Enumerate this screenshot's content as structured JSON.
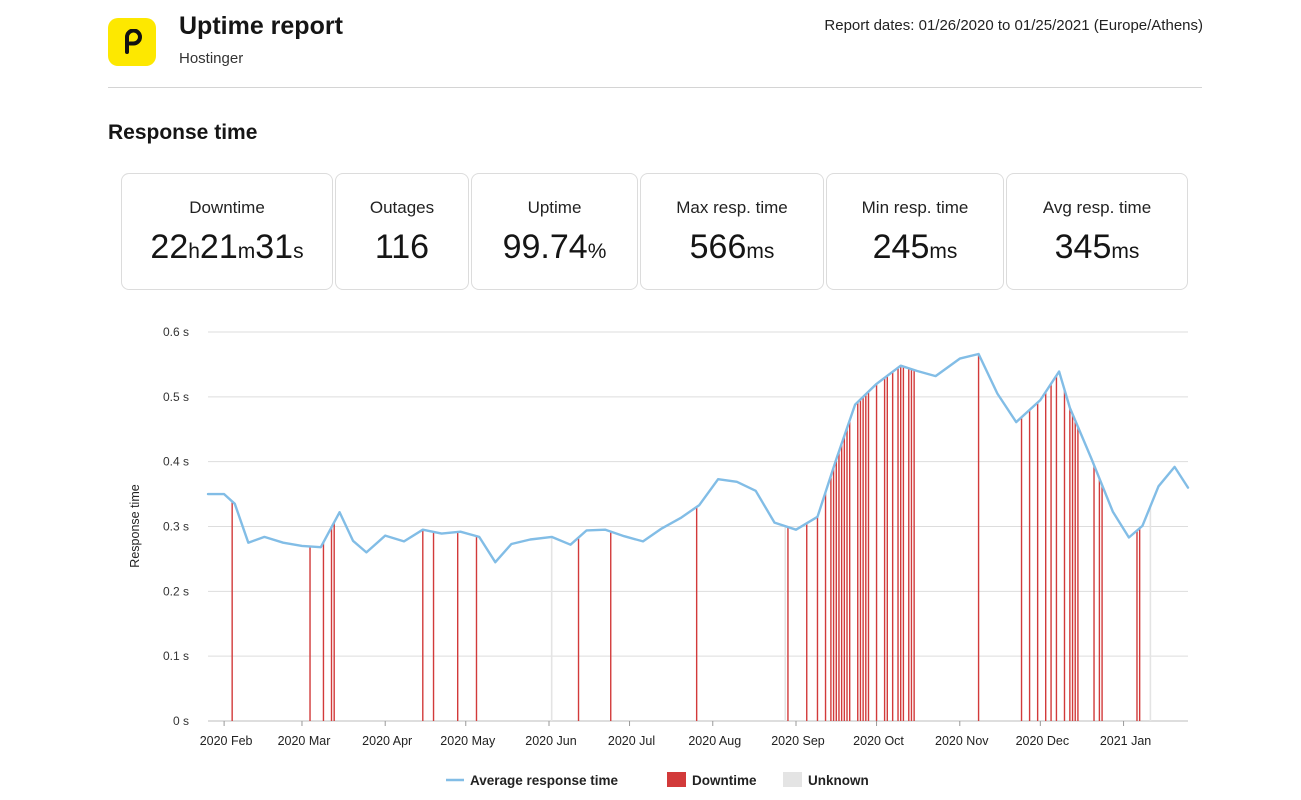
{
  "header": {
    "title": "Uptime report",
    "subtitle": "Hostinger",
    "report_dates": "Report dates: 01/26/2020 to 01/25/2021 (Europe/Athens)",
    "logo_color": "#fde800"
  },
  "section": {
    "title": "Response time"
  },
  "stats": [
    {
      "label": "Downtime",
      "parts": [
        [
          "22",
          "num"
        ],
        [
          "h",
          "unit"
        ],
        [
          "21",
          "num"
        ],
        [
          "m",
          "unit"
        ],
        [
          "31",
          "num"
        ],
        [
          "s",
          "unit"
        ]
      ]
    },
    {
      "label": "Outages",
      "parts": [
        [
          "116",
          "num"
        ]
      ]
    },
    {
      "label": "Uptime",
      "parts": [
        [
          "99.74",
          "num"
        ],
        [
          "%",
          "unit"
        ]
      ]
    },
    {
      "label": "Max resp. time",
      "parts": [
        [
          "566",
          "num"
        ],
        [
          "ms",
          "unit"
        ]
      ]
    },
    {
      "label": "Min resp. time",
      "parts": [
        [
          "245",
          "num"
        ],
        [
          "ms",
          "unit"
        ]
      ]
    },
    {
      "label": "Avg resp. time",
      "parts": [
        [
          "345",
          "num"
        ],
        [
          "ms",
          "unit"
        ]
      ]
    }
  ],
  "chart_data": {
    "type": "line",
    "ylabel": "Response time",
    "yticks": [
      "0 s",
      "0.1 s",
      "0.2 s",
      "0.3 s",
      "0.4 s",
      "0.5 s",
      "0.6 s"
    ],
    "ylim": [
      0,
      0.6
    ],
    "xlim": [
      "2020-01-26",
      "2021-01-25"
    ],
    "xticks": [
      {
        "label": "2020 Feb",
        "date": "2020-02-01"
      },
      {
        "label": "2020 Mar",
        "date": "2020-03-01"
      },
      {
        "label": "2020 Apr",
        "date": "2020-04-01"
      },
      {
        "label": "2020 May",
        "date": "2020-05-01"
      },
      {
        "label": "2020 Jun",
        "date": "2020-06-01"
      },
      {
        "label": "2020 Jul",
        "date": "2020-07-01"
      },
      {
        "label": "2020 Aug",
        "date": "2020-08-01"
      },
      {
        "label": "2020 Sep",
        "date": "2020-09-01"
      },
      {
        "label": "2020 Oct",
        "date": "2020-10-01"
      },
      {
        "label": "2020 Nov",
        "date": "2020-11-01"
      },
      {
        "label": "2020 Dec",
        "date": "2020-12-01"
      },
      {
        "label": "2021 Jan",
        "date": "2021-01-01"
      }
    ],
    "grid": true,
    "legend_position": "bottom",
    "colors": {
      "line": "#82bde6",
      "downtime": "#d23a3a",
      "unknown": "#e4e4e4",
      "grid": "#dddddd"
    },
    "series": [
      {
        "name": "Average response time",
        "x": [
          "2020-01-26",
          "2020-02-01",
          "2020-02-05",
          "2020-02-10",
          "2020-02-16",
          "2020-02-23",
          "2020-03-01",
          "2020-03-08",
          "2020-03-15",
          "2020-03-20",
          "2020-03-25",
          "2020-04-01",
          "2020-04-08",
          "2020-04-15",
          "2020-04-22",
          "2020-04-29",
          "2020-05-06",
          "2020-05-12",
          "2020-05-18",
          "2020-05-25",
          "2020-06-02",
          "2020-06-09",
          "2020-06-15",
          "2020-06-22",
          "2020-06-29",
          "2020-07-06",
          "2020-07-13",
          "2020-07-20",
          "2020-07-27",
          "2020-08-03",
          "2020-08-10",
          "2020-08-17",
          "2020-08-24",
          "2020-09-01",
          "2020-09-09",
          "2020-09-16",
          "2020-09-23",
          "2020-10-01",
          "2020-10-10",
          "2020-10-16",
          "2020-10-23",
          "2020-11-01",
          "2020-11-08",
          "2020-11-15",
          "2020-11-22",
          "2020-12-01",
          "2020-12-08",
          "2020-12-12",
          "2020-12-20",
          "2020-12-28",
          "2021-01-03",
          "2021-01-08",
          "2021-01-14",
          "2021-01-20",
          "2021-01-25"
        ],
        "y": [
          0.35,
          0.35,
          0.335,
          0.275,
          0.284,
          0.275,
          0.27,
          0.268,
          0.322,
          0.278,
          0.26,
          0.286,
          0.277,
          0.295,
          0.289,
          0.292,
          0.284,
          0.245,
          0.273,
          0.28,
          0.284,
          0.272,
          0.294,
          0.295,
          0.285,
          0.277,
          0.297,
          0.313,
          0.333,
          0.373,
          0.369,
          0.355,
          0.306,
          0.295,
          0.315,
          0.404,
          0.488,
          0.52,
          0.548,
          0.54,
          0.532,
          0.559,
          0.566,
          0.505,
          0.461,
          0.495,
          0.539,
          0.483,
          0.405,
          0.323,
          0.283,
          0.301,
          0.362,
          0.392,
          0.36
        ]
      }
    ],
    "downtime": {
      "name": "Downtime",
      "dates": [
        "2020-02-04",
        "2020-03-04",
        "2020-03-09",
        "2020-03-12",
        "2020-03-13",
        "2020-04-15",
        "2020-04-19",
        "2020-04-28",
        "2020-05-05",
        "2020-06-12",
        "2020-06-24",
        "2020-07-26",
        "2020-08-29",
        "2020-09-05",
        "2020-09-09",
        "2020-09-12",
        "2020-09-14",
        "2020-09-15",
        "2020-09-16",
        "2020-09-17",
        "2020-09-18",
        "2020-09-19",
        "2020-09-20",
        "2020-09-21",
        "2020-09-24",
        "2020-09-25",
        "2020-09-26",
        "2020-09-27",
        "2020-09-28",
        "2020-10-01",
        "2020-10-04",
        "2020-10-05",
        "2020-10-07",
        "2020-10-09",
        "2020-10-10",
        "2020-10-11",
        "2020-10-13",
        "2020-10-14",
        "2020-10-15",
        "2020-11-08",
        "2020-11-24",
        "2020-11-27",
        "2020-11-30",
        "2020-12-03",
        "2020-12-05",
        "2020-12-07",
        "2020-12-10",
        "2020-12-12",
        "2020-12-13",
        "2020-12-14",
        "2020-12-15",
        "2020-12-21",
        "2020-12-23",
        "2020-12-24",
        "2021-01-06",
        "2021-01-07"
      ]
    },
    "unknown": {
      "name": "Unknown",
      "dates": [
        "2020-06-02",
        "2020-08-28",
        "2021-01-11"
      ]
    }
  }
}
